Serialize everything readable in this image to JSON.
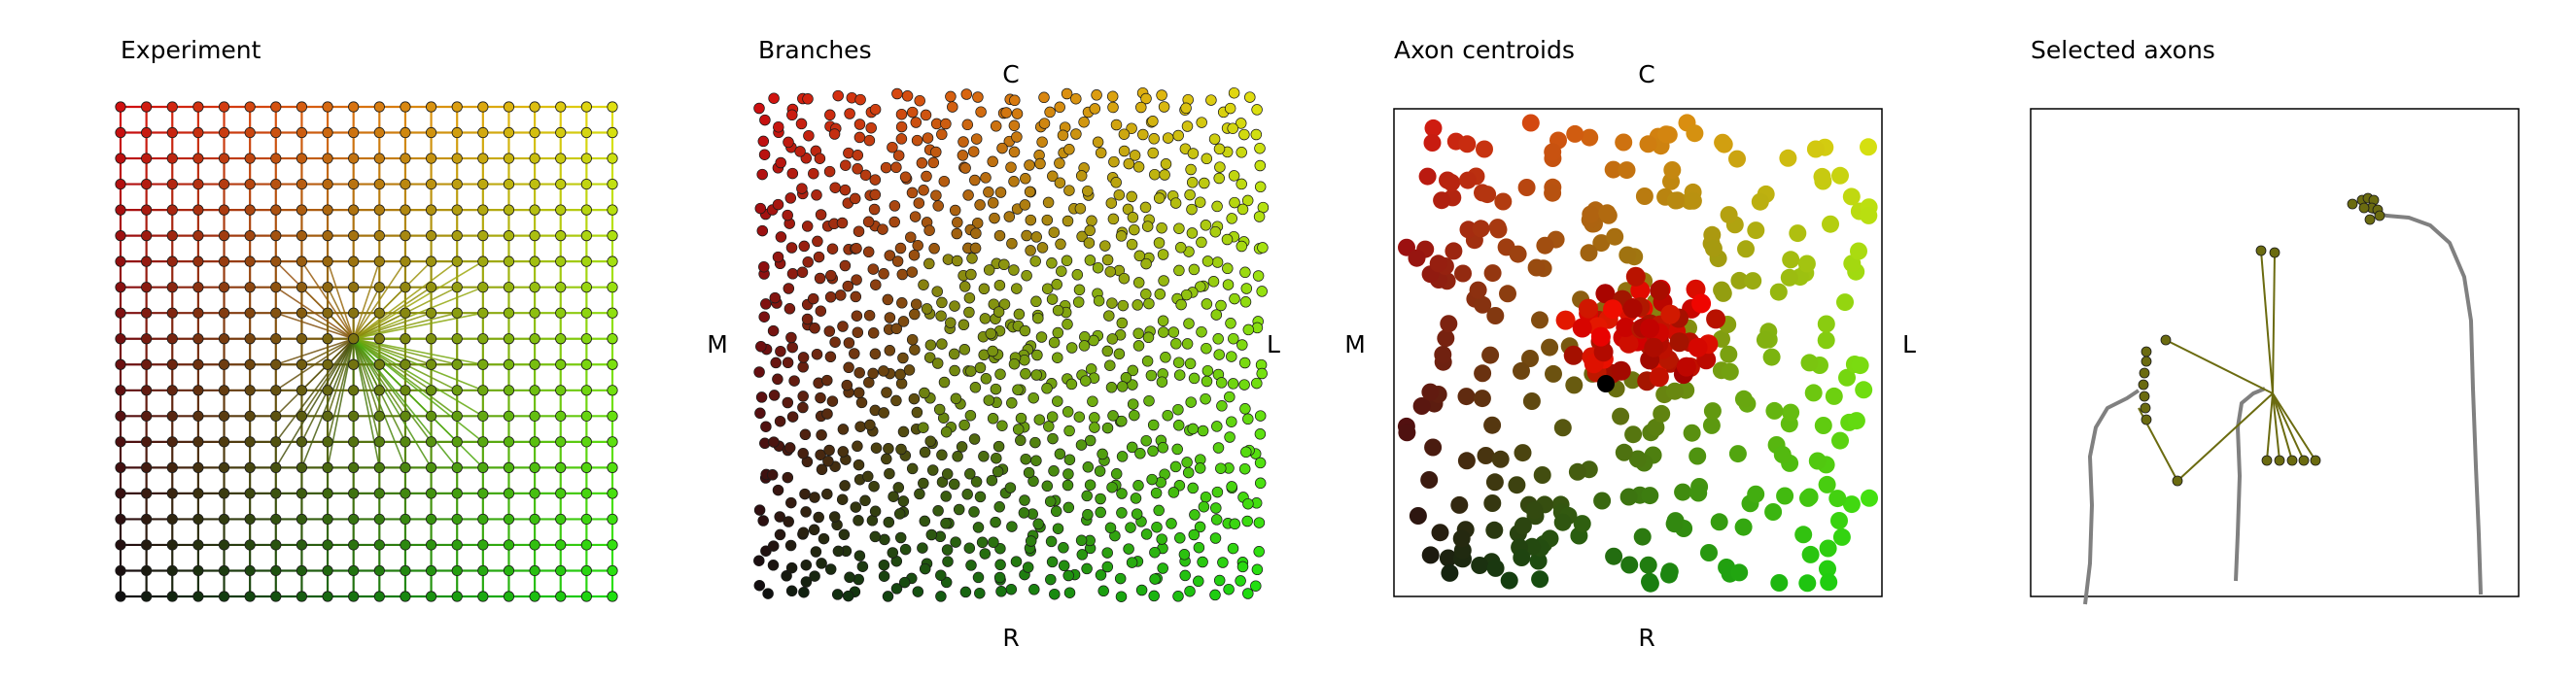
{
  "figure": {
    "panels": [
      {
        "title": "Experiment",
        "directions": null,
        "frame": false
      },
      {
        "title": "Branches",
        "directions": {
          "top": "C",
          "bottom": "R",
          "left": "M",
          "right": "L"
        },
        "frame": false
      },
      {
        "title": "Axon centroids",
        "directions": {
          "top": "C",
          "bottom": "R",
          "left": "M",
          "right": "L"
        },
        "frame": true
      },
      {
        "title": "Selected axons",
        "directions": null,
        "frame": true
      }
    ]
  },
  "chart_data": [
    {
      "type": "scatter",
      "title": "Experiment",
      "description_grid": {
        "columns": 20,
        "rows": 20
      },
      "color_scheme": {
        "top-left": "#d01010",
        "top-right": "#e0e010",
        "bottom-left": "#101010",
        "bottom-right": "#20e010"
      },
      "highlighted_block": {
        "col_range": [
          6,
          14
        ],
        "row_range": [
          6,
          14
        ],
        "hub_cell": [
          9,
          9
        ],
        "line_color": "#8a6a10"
      },
      "xlabel": "",
      "ylabel": "",
      "grid": false,
      "axes_visible": false
    },
    {
      "type": "scatter",
      "title": "Branches",
      "description": "many small colored points forming concentric square bands",
      "range": [
        0,
        1
      ],
      "grid": false,
      "axes_visible": false
    },
    {
      "type": "scatter",
      "title": "Axon centroids",
      "description": "colored centroid points; red cluster near the center",
      "range": [
        0,
        1
      ],
      "grid": false,
      "axes_visible": false
    },
    {
      "type": "line",
      "title": "Selected axons",
      "description": "three gray axon traces with olive branch points",
      "grid": false,
      "axes_visible": false
    }
  ],
  "colors": {
    "axon_trace": "#808080",
    "branch_marker": "#6b6b10",
    "marker_edge": "#1a1a1a"
  }
}
